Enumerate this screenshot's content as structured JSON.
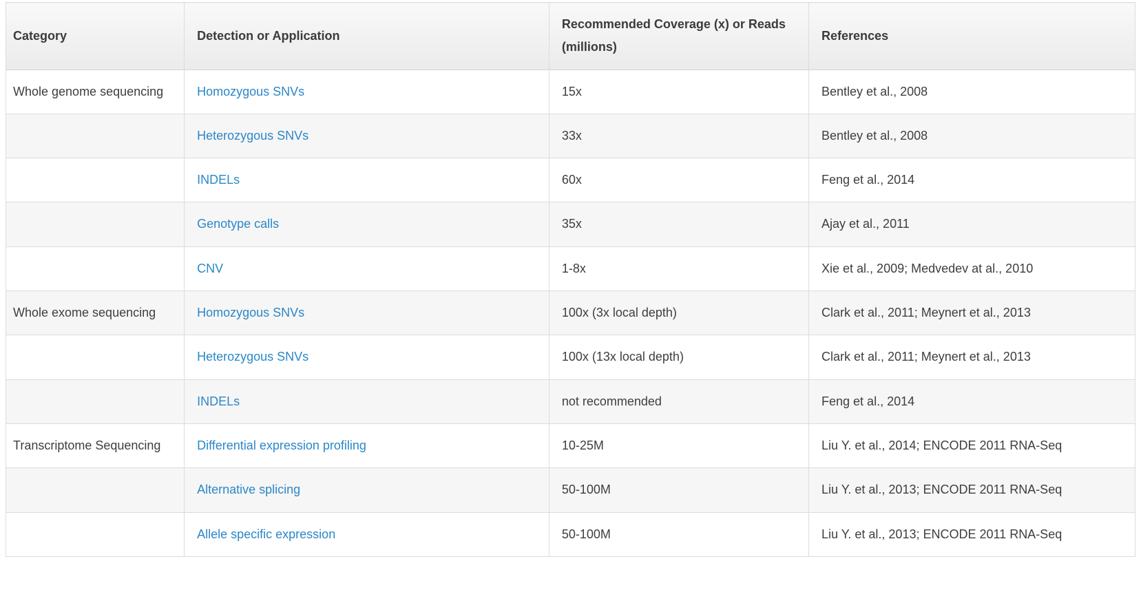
{
  "table": {
    "columns": [
      "Category",
      "Detection or Application",
      "Recommended Coverage (x) or Reads (millions)",
      "References"
    ],
    "rows": [
      {
        "category": "Whole genome sequencing",
        "application": "Homozygous SNVs",
        "coverage": "15x",
        "references": "Bentley et al., 2008"
      },
      {
        "category": "",
        "application": "Heterozygous SNVs",
        "coverage": "33x",
        "references": "Bentley et al., 2008"
      },
      {
        "category": "",
        "application": "INDELs",
        "coverage": "60x",
        "references": "Feng et al., 2014"
      },
      {
        "category": "",
        "application": "Genotype calls",
        "coverage": "35x",
        "references": "Ajay et al., 2011"
      },
      {
        "category": "",
        "application": "CNV",
        "coverage": "1-8x",
        "references": "Xie et al., 2009; Medvedev at al., 2010"
      },
      {
        "category": "Whole exome sequencing",
        "application": "Homozygous SNVs",
        "coverage": "100x (3x local depth)",
        "references": "Clark et al., 2011; Meynert et al., 2013"
      },
      {
        "category": "",
        "application": "Heterozygous SNVs",
        "coverage": "100x (13x local depth)",
        "references": "Clark et al., 2011; Meynert et al., 2013"
      },
      {
        "category": "",
        "application": "INDELs",
        "coverage": "not recommended",
        "references": "Feng et al., 2014"
      },
      {
        "category": "Transcriptome Sequencing",
        "application": "Differential expression profiling",
        "coverage": "10-25M",
        "references": "Liu Y. et al., 2014; ENCODE 2011 RNA-Seq"
      },
      {
        "category": "",
        "application": "Alternative splicing",
        "coverage": "50-100M",
        "references": "Liu Y. et al., 2013; ENCODE 2011 RNA-Seq"
      },
      {
        "category": "",
        "application": "Allele specific expression",
        "coverage": "50-100M",
        "references": "Liu Y. et al., 2013; ENCODE 2011 RNA-Seq"
      }
    ]
  },
  "colors": {
    "link": "#2b87c8",
    "text": "#3e3e3e",
    "header_text": "#3b3b3b",
    "stripe": "#f6f6f6",
    "border": "#dcdcdc",
    "header_bg_top": "#f9f9f9",
    "header_bg_bottom": "#ebebeb"
  }
}
